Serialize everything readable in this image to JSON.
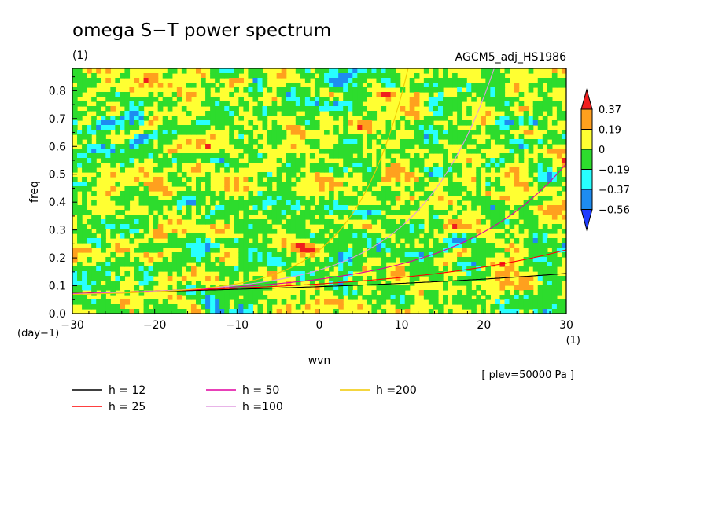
{
  "chart_data": {
    "type": "heatmap",
    "title": "omega S−T power spectrum",
    "subtitle": "(1)",
    "experiment": "AGCM5_adj_HS1986",
    "xlabel": "wvn",
    "ylabel": "freq",
    "x_unit": "(1)",
    "y_unit": "(day−1)",
    "note": "[ plev=50000 Pa ]",
    "xlim": [
      -30,
      30
    ],
    "ylim": [
      0,
      0.88
    ],
    "x_ticks": [
      -30,
      -20,
      -10,
      0,
      10,
      20,
      30
    ],
    "x_tick_labels": [
      "−30",
      "−20",
      "−10",
      "0",
      "10",
      "20",
      "30"
    ],
    "y_ticks": [
      0.0,
      0.1,
      0.2,
      0.3,
      0.4,
      0.5,
      0.6,
      0.7,
      0.8
    ],
    "y_tick_labels": [
      "0.0",
      "0.1",
      "0.2",
      "0.3",
      "0.4",
      "0.5",
      "0.6",
      "0.7",
      "0.8"
    ],
    "colorbar": {
      "levels": [
        "0.37",
        "0.19",
        "0",
        "−0.19",
        "−0.37",
        "−0.56"
      ],
      "colors": [
        "#f01e1e",
        "#ffa01e",
        "#ffff32",
        "#2ddc2d",
        "#28ffff",
        "#1e8cf0",
        "#1e3cff"
      ]
    },
    "field_approx": {
      "pattern": "noisy field near zero, fluctuating mostly between −0.19 and 0.19 with scattered extremes",
      "dominant_colors": [
        "#ffff32",
        "#2ddc2d",
        "#ffa01e"
      ]
    },
    "series": [
      {
        "label": "h = 12",
        "color": "#000000",
        "h": 12
      },
      {
        "label": "h = 25",
        "color": "#ff0000",
        "h": 25
      },
      {
        "label": "h = 50",
        "color": "#e000a0",
        "h": 50
      },
      {
        "label": "h =100",
        "color": "#e09be0",
        "h": 100
      },
      {
        "label": "h =200",
        "color": "#f0c800",
        "h": 200
      }
    ]
  }
}
